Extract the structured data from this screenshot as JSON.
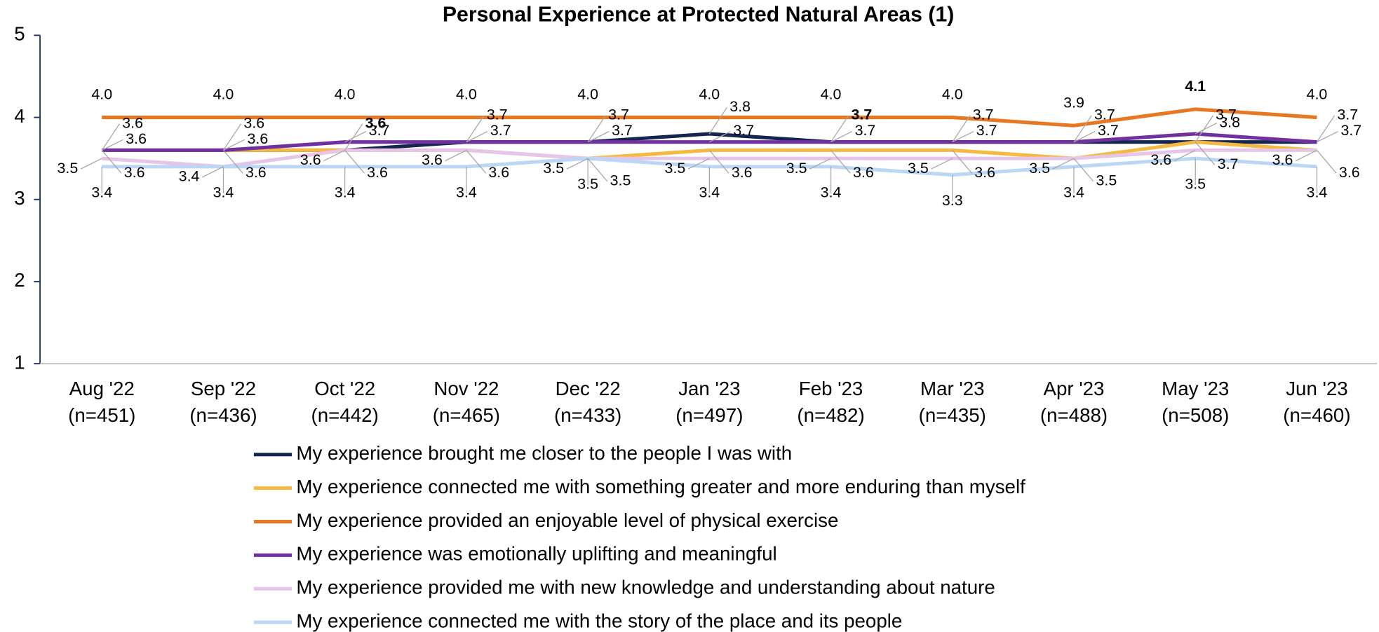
{
  "chart_data": {
    "type": "line",
    "title": "Personal Experience at Protected Natural Areas (1)",
    "categories": [
      "Aug '22",
      "Sep '22",
      "Oct '22",
      "Nov '22",
      "Dec '22",
      "Jan '23",
      "Feb '23",
      "Mar '23",
      "Apr '23",
      "May '23",
      "Jun '23"
    ],
    "category_sublabels": [
      "(n=451)",
      "(n=436)",
      "(n=442)",
      "(n=465)",
      "(n=433)",
      "(n=497)",
      "(n=482)",
      "(n=435)",
      "(n=488)",
      "(n=508)",
      "(n=460)"
    ],
    "ylim": [
      1,
      5
    ],
    "yticks": [
      1,
      2,
      3,
      4,
      5
    ],
    "series": [
      {
        "name": "My experience brought me closer to the people I was with",
        "color": "#14254f",
        "values": [
          3.6,
          3.6,
          3.6,
          3.7,
          3.7,
          3.8,
          3.7,
          3.7,
          3.7,
          3.7,
          3.7
        ],
        "value_labels": [
          "3.6",
          "3.6",
          "3.6",
          "3.7",
          "3.7",
          "3.8",
          "3.7",
          "3.7",
          "3.7",
          "3.7",
          "3.7"
        ]
      },
      {
        "name": "My experience connected me with something greater and more enduring than myself",
        "color": "#f4b942",
        "values": [
          3.6,
          3.6,
          3.6,
          3.6,
          3.5,
          3.6,
          3.6,
          3.6,
          3.5,
          3.7,
          3.6
        ],
        "value_labels": [
          "3.6",
          "3.6",
          "3.6",
          "3.6",
          "3.5",
          "3.6",
          "3.6",
          "3.6",
          "3.5",
          "3.7",
          "3.6"
        ]
      },
      {
        "name": "My experience provided an enjoyable level of physical exercise",
        "color": "#e87722",
        "values": [
          4.0,
          4.0,
          4.0,
          4.0,
          4.0,
          4.0,
          4.0,
          4.0,
          3.9,
          4.1,
          4.0
        ],
        "value_labels": [
          "4.0",
          "4.0",
          "4.0",
          "4.0",
          "4.0",
          "4.0",
          "4.0",
          "4.0",
          "3.9",
          "4.1",
          "4.0"
        ]
      },
      {
        "name": "My experience was emotionally uplifting and meaningful",
        "color": "#7030a0",
        "values": [
          3.6,
          3.6,
          3.7,
          3.7,
          3.7,
          3.7,
          3.7,
          3.7,
          3.7,
          3.8,
          3.7
        ],
        "value_labels": [
          "3.6",
          "3.6",
          "3.7",
          "3.7",
          "3.7",
          "3.7",
          "3.7",
          "3.7",
          "3.7",
          "3.8",
          "3.7"
        ]
      },
      {
        "name": "My experience provided me with new knowledge and understanding about nature",
        "color": "#e6c6e8",
        "values": [
          3.5,
          3.4,
          3.6,
          3.6,
          3.5,
          3.5,
          3.5,
          3.5,
          3.5,
          3.6,
          3.6
        ],
        "value_labels": [
          "3.5",
          "3.4",
          "3.6",
          "3.6",
          "3.5",
          "3.5",
          "3.5",
          "3.5",
          "3.5",
          "3.6",
          "3.6"
        ]
      },
      {
        "name": "My experience connected me with the story of the place and its people",
        "color": "#bcd7f5",
        "values": [
          3.4,
          3.4,
          3.4,
          3.4,
          3.5,
          3.4,
          3.4,
          3.3,
          3.4,
          3.5,
          3.4
        ],
        "value_labels": [
          "3.4",
          "3.4",
          "3.4",
          "3.4",
          "3.5",
          "3.4",
          "3.4",
          "3.3",
          "3.4",
          "3.5",
          "3.4"
        ]
      }
    ],
    "highlights": [
      {
        "series": 0,
        "index": 2,
        "color": "#00b050"
      },
      {
        "series": 0,
        "index": 6,
        "color": "#ff0000"
      },
      {
        "series": 2,
        "index": 9,
        "color": "#00b050"
      }
    ]
  }
}
